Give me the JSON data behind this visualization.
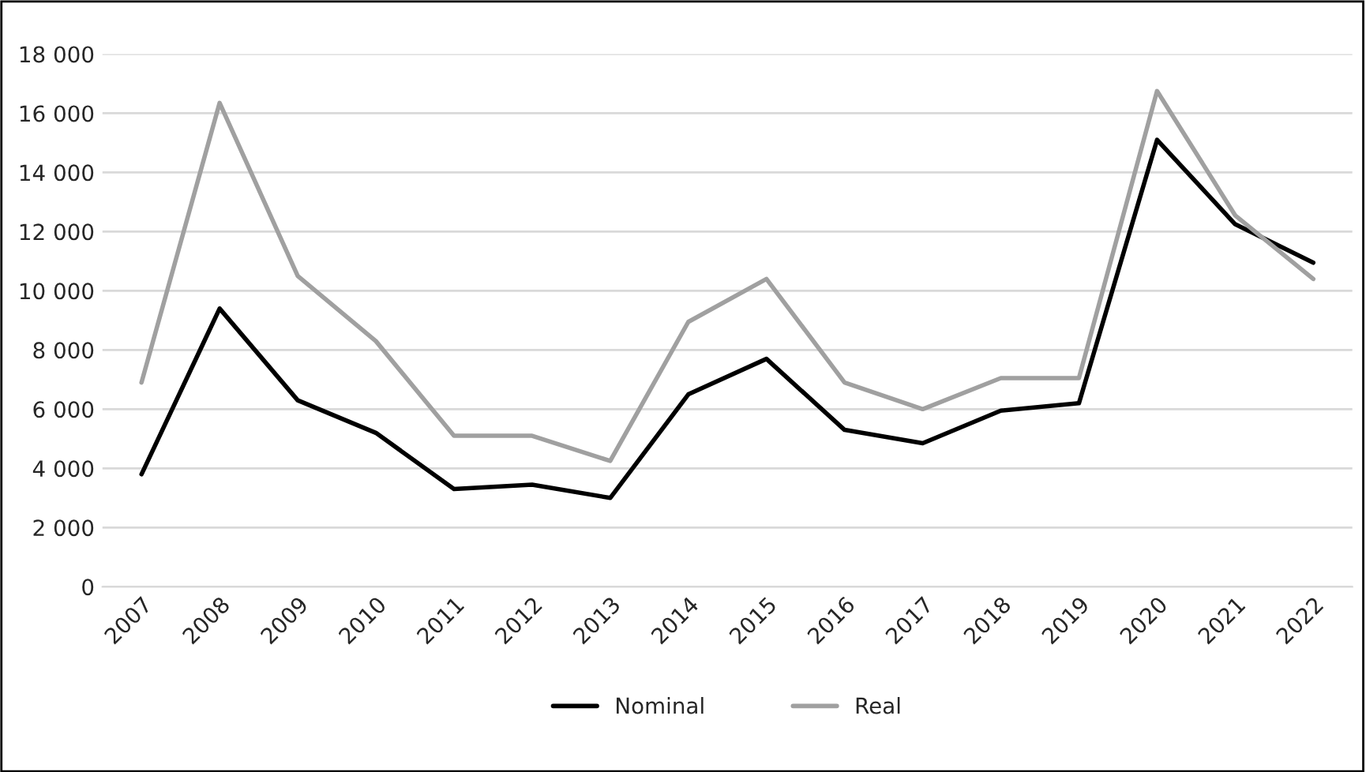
{
  "chart_data": {
    "type": "line",
    "categories": [
      "2007",
      "2008",
      "2009",
      "2010",
      "2011",
      "2012",
      "2013",
      "2014",
      "2015",
      "2016",
      "2017",
      "2018",
      "2019",
      "2020",
      "2021",
      "2022"
    ],
    "series": [
      {
        "name": "Nominal",
        "color": "#000000",
        "values": [
          3800,
          9400,
          6300,
          5200,
          3300,
          3450,
          3000,
          6500,
          7700,
          5300,
          4850,
          5950,
          6200,
          15100,
          12250,
          10950
        ]
      },
      {
        "name": "Real",
        "color": "#a0a0a0",
        "values": [
          6900,
          16350,
          10500,
          8300,
          5100,
          5100,
          4250,
          8950,
          10400,
          6900,
          6000,
          7050,
          7050,
          16750,
          12550,
          10400
        ]
      }
    ],
    "ylim": [
      0,
      18000
    ],
    "yticks": [
      {
        "value": 0,
        "label": "0"
      },
      {
        "value": 2000,
        "label": "2 000"
      },
      {
        "value": 4000,
        "label": "4 000"
      },
      {
        "value": 6000,
        "label": "6 000"
      },
      {
        "value": 8000,
        "label": "8 000"
      },
      {
        "value": 10000,
        "label": "10 000"
      },
      {
        "value": 12000,
        "label": "12 000"
      },
      {
        "value": 14000,
        "label": "14 000"
      },
      {
        "value": 16000,
        "label": "16 000"
      },
      {
        "value": 18000,
        "label": "18 000"
      }
    ],
    "grid": "y",
    "legend": "bottom",
    "marker": "none",
    "line_style": "solid"
  }
}
